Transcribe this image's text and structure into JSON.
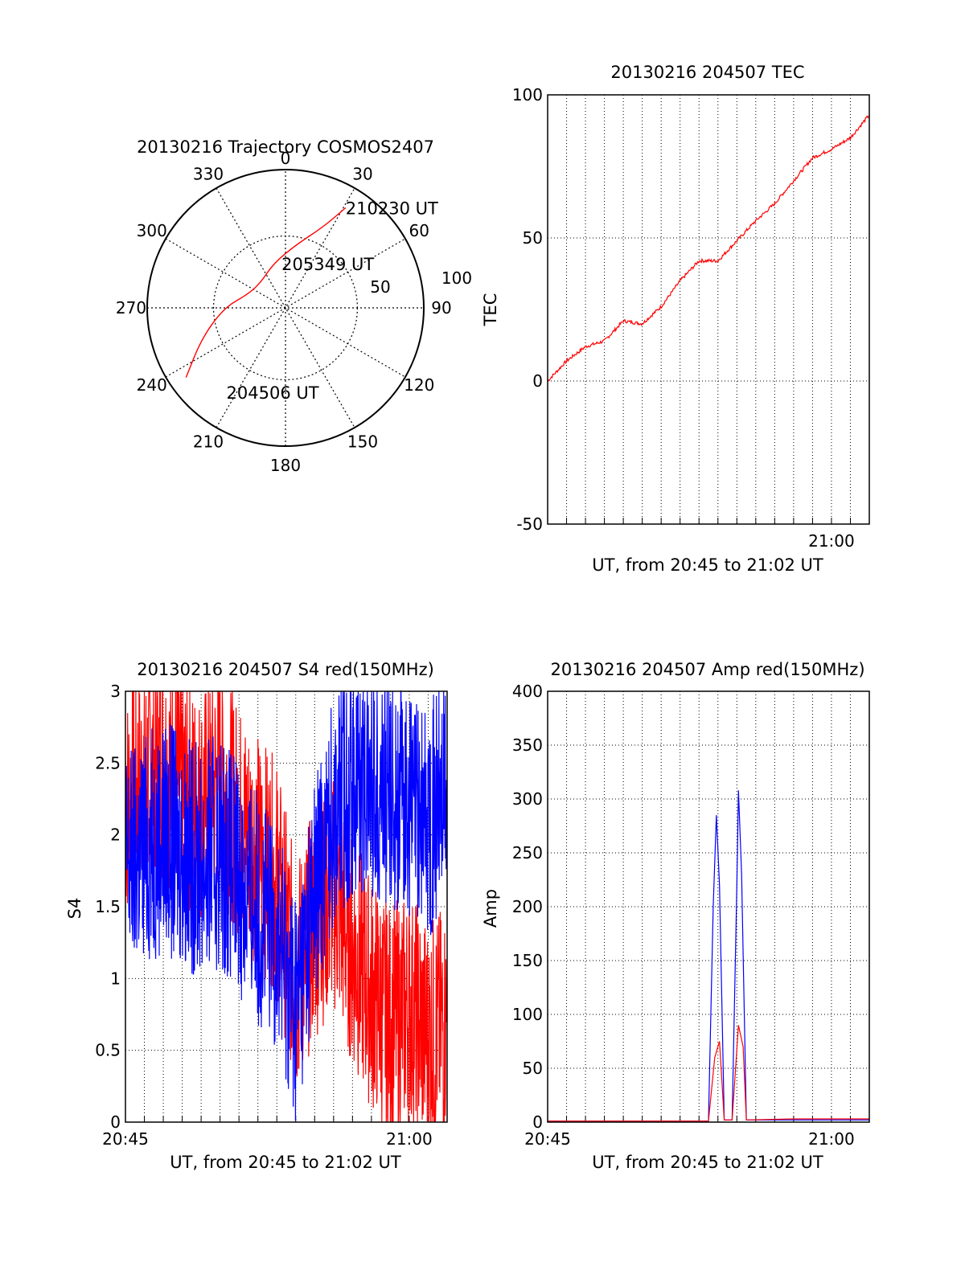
{
  "colors": {
    "red_series": "#ff0000",
    "blue_series": "#0000ff",
    "axis": "#000000",
    "grid": "#000000"
  },
  "chart_data": [
    {
      "id": "trajectory",
      "type": "polar",
      "title": "20130216 Trajectory COSMOS2407",
      "angle_labels": [
        "0",
        "30",
        "60",
        "90",
        "120",
        "150",
        "180",
        "210",
        "240",
        "270",
        "300",
        "330"
      ],
      "radial_labels": [
        "50",
        "100"
      ],
      "grid": true,
      "track": {
        "points": [
          {
            "azimuth": 235,
            "elevation": 11
          },
          {
            "azimuth": 250,
            "elevation": 32
          },
          {
            "azimuth": 270,
            "elevation": 50
          },
          {
            "azimuth": 290,
            "elevation": 64
          },
          {
            "azimuth": 315,
            "elevation": 67
          },
          {
            "azimuth": 345,
            "elevation": 60
          },
          {
            "azimuth": 10,
            "elevation": 48
          },
          {
            "azimuth": 25,
            "elevation": 32
          },
          {
            "azimuth": 31,
            "elevation": 14
          }
        ],
        "color": "#ff0000"
      },
      "annotations": [
        {
          "text": "210230 UT",
          "azimuth": 31,
          "elevation": 14
        },
        {
          "text": "205349 UT",
          "azimuth": 355,
          "elevation": 61
        },
        {
          "text": "204506 UT",
          "azimuth": 215,
          "elevation": 23
        }
      ]
    },
    {
      "id": "tec",
      "type": "line",
      "title": "20130216 204507 TEC",
      "xlabel": "UT, from 20:45 to 21:02 UT",
      "ylabel": "TEC",
      "xlim": [
        "20:45",
        "21:02"
      ],
      "ylim": [
        -50,
        100
      ],
      "yticks": [
        "-50",
        "0",
        "50",
        "100"
      ],
      "xticks": [
        "21:00"
      ],
      "grid": true,
      "series": [
        {
          "color": "#ff0000",
          "x": [
            "20:45",
            "20:46",
            "20:47",
            "20:48",
            "20:49",
            "20:50",
            "20:51",
            "20:52",
            "20:53",
            "20:54",
            "20:55",
            "20:56",
            "20:57",
            "20:58",
            "20:59",
            "21:00",
            "21:01",
            "21:02"
          ],
          "values": [
            0,
            7,
            12,
            14,
            21,
            20,
            26,
            35,
            42,
            42,
            49,
            56,
            62,
            70,
            78,
            81,
            85,
            93
          ]
        }
      ]
    },
    {
      "id": "s4",
      "type": "line",
      "title": "20130216 204507 S4 red(150MHz)",
      "xlabel": "UT, from 20:45 to 21:02 UT",
      "ylabel": "S4",
      "xlim": [
        "20:45",
        "21:02"
      ],
      "ylim": [
        0,
        3
      ],
      "yticks": [
        "0",
        "0.5",
        "1",
        "1.5",
        "2",
        "2.5",
        "3"
      ],
      "xticks": [
        "20:45",
        "21:00"
      ],
      "grid": true,
      "series": [
        {
          "color": "#ff0000",
          "x": [
            "20:45",
            "20:46",
            "20:47",
            "20:48",
            "20:49",
            "20:50",
            "20:51",
            "20:52",
            "20:53",
            "20:54",
            "20:55",
            "20:56",
            "20:57",
            "20:58",
            "20:59",
            "21:00",
            "21:01",
            "21:02"
          ],
          "values": [
            2.2,
            2.4,
            2.5,
            2.3,
            2.2,
            2.4,
            2.1,
            1.9,
            1.7,
            1.0,
            1.4,
            1.6,
            1.2,
            0.9,
            0.7,
            0.8,
            0.6,
            0.7
          ]
        },
        {
          "color": "#0000ff",
          "x": [
            "20:45",
            "20:46",
            "20:47",
            "20:48",
            "20:49",
            "20:50",
            "20:51",
            "20:52",
            "20:53",
            "20:54",
            "20:55",
            "20:56",
            "20:57",
            "20:58",
            "20:59",
            "21:00",
            "21:01",
            "21:02"
          ],
          "values": [
            1.8,
            1.9,
            2.0,
            1.9,
            1.8,
            1.9,
            1.7,
            1.5,
            1.3,
            0.8,
            1.6,
            2.2,
            2.4,
            2.4,
            2.3,
            2.2,
            2.1,
            2.3
          ]
        }
      ]
    },
    {
      "id": "amp",
      "type": "line",
      "title": "20130216 204507 Amp red(150MHz)",
      "xlabel": "UT, from 20:45 to 21:02 UT",
      "ylabel": "Amp",
      "xlim": [
        "20:45",
        "21:02"
      ],
      "ylim": [
        0,
        400
      ],
      "yticks": [
        "0",
        "50",
        "100",
        "150",
        "200",
        "250",
        "300",
        "350",
        "400"
      ],
      "xticks": [
        "20:45",
        "21:00"
      ],
      "grid": true,
      "series": [
        {
          "color": "#0000ff",
          "x": [
            "20:45",
            "20:53:30",
            "20:53:45",
            "20:53:55",
            "20:54:05",
            "20:54:20",
            "20:54:45",
            "20:55:00",
            "20:55:05",
            "20:55:15",
            "20:55:30",
            "21:02"
          ],
          "values": [
            1,
            1,
            200,
            285,
            220,
            2,
            2,
            220,
            308,
            230,
            2,
            2
          ]
        },
        {
          "color": "#ff0000",
          "x": [
            "20:45",
            "20:53:30",
            "20:53:50",
            "20:54:05",
            "20:54:20",
            "20:54:45",
            "20:55:05",
            "20:55:20",
            "20:55:30",
            "20:58",
            "21:02"
          ],
          "values": [
            1,
            1,
            60,
            75,
            2,
            2,
            90,
            70,
            2,
            3,
            3
          ]
        }
      ]
    }
  ]
}
